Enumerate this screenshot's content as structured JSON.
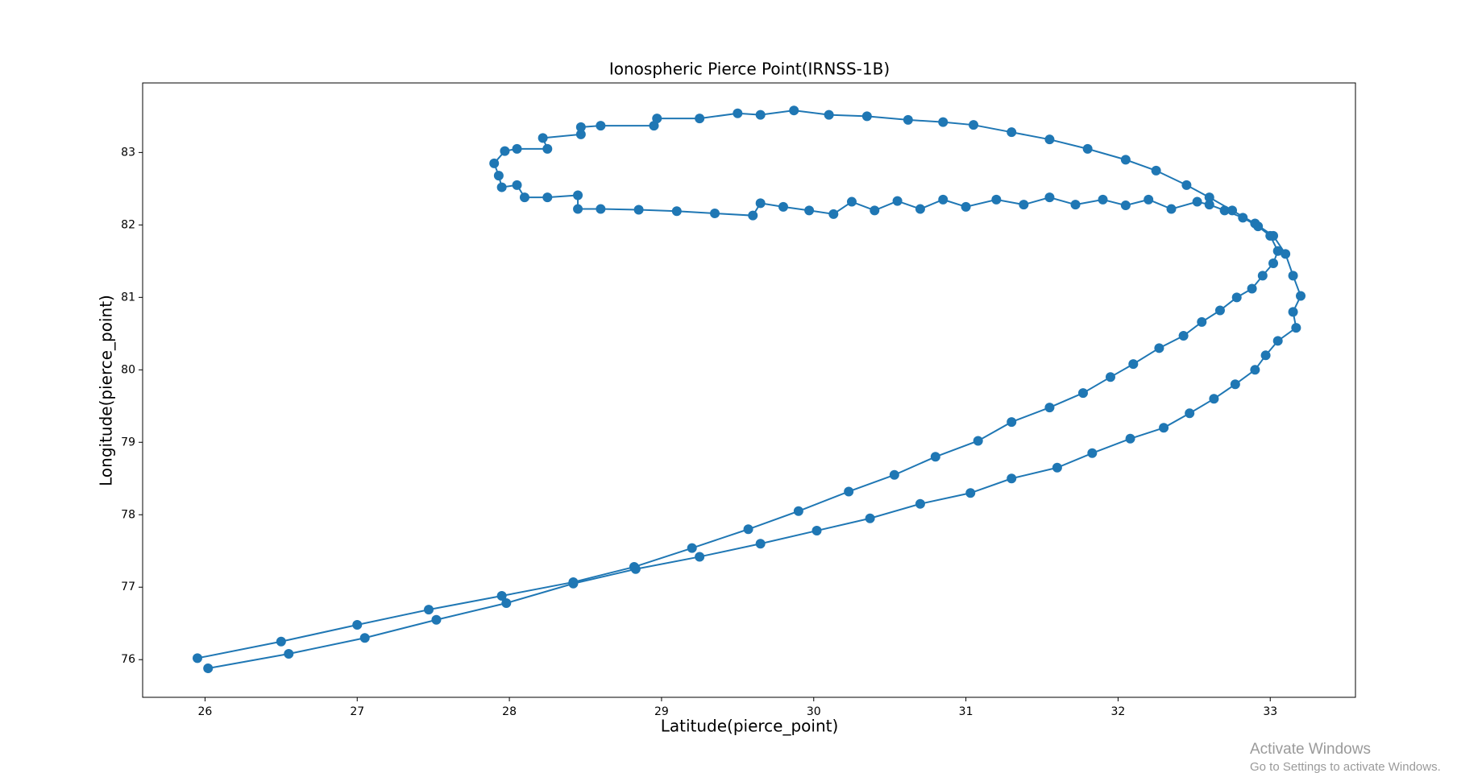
{
  "chart_data": {
    "type": "line",
    "title": "Ionospheric Pierce Point(IRNSS-1B)",
    "x_label": "Latitude(pierce_point)",
    "y_label": "Longitude(pierce_point)",
    "xlim": [
      25.59,
      33.56
    ],
    "ylim": [
      75.48,
      83.96
    ],
    "xticks": [
      26,
      27,
      28,
      29,
      30,
      31,
      32,
      33
    ],
    "yticks": [
      76,
      77,
      78,
      79,
      80,
      81,
      82,
      83
    ],
    "grid": false,
    "marker": "circle",
    "series": [
      {
        "name": "IRNSS-1B",
        "color": "#1f77b4",
        "x": [
          25.95,
          26.5,
          27.0,
          27.47,
          27.95,
          28.42,
          28.82,
          29.2,
          29.57,
          29.9,
          30.23,
          30.53,
          30.8,
          31.08,
          31.3,
          31.55,
          31.77,
          31.95,
          32.1,
          32.27,
          32.43,
          32.55,
          32.67,
          32.78,
          32.88,
          32.95,
          33.02,
          33.05,
          33.0,
          32.92,
          32.82,
          32.7,
          32.6,
          32.52,
          32.35,
          32.2,
          32.05,
          31.9,
          31.72,
          31.55,
          31.38,
          31.2,
          31.0,
          30.85,
          30.7,
          30.55,
          30.4,
          30.25,
          30.13,
          29.97,
          29.8,
          29.65,
          29.6,
          29.35,
          29.1,
          28.85,
          28.6,
          28.45,
          28.45,
          28.25,
          28.1,
          28.05,
          27.95,
          27.93,
          27.9,
          27.97,
          28.05,
          28.25,
          28.22,
          28.47,
          28.47,
          28.6,
          28.95,
          28.97,
          29.25,
          29.5,
          29.65,
          29.87,
          30.1,
          30.35,
          30.62,
          30.85,
          31.05,
          31.3,
          31.55,
          31.8,
          32.05,
          32.25,
          32.45,
          32.6,
          32.75,
          32.9,
          33.02,
          33.1,
          33.15,
          33.2,
          33.15,
          33.17,
          33.05,
          32.97,
          32.9,
          32.77,
          32.63,
          32.47,
          32.3,
          32.08,
          31.83,
          31.6,
          31.3,
          31.03,
          30.7,
          30.37,
          30.02,
          29.65,
          29.25,
          28.83,
          28.42,
          27.98,
          27.52,
          27.05,
          26.55,
          26.02
        ],
        "values": [
          76.02,
          76.25,
          76.48,
          76.69,
          76.88,
          77.07,
          77.28,
          77.54,
          77.8,
          78.05,
          78.32,
          78.55,
          78.8,
          79.02,
          79.28,
          79.48,
          79.68,
          79.9,
          80.08,
          80.3,
          80.47,
          80.66,
          80.82,
          81.0,
          81.12,
          81.3,
          81.47,
          81.64,
          81.85,
          81.98,
          82.1,
          82.2,
          82.28,
          82.32,
          82.22,
          82.35,
          82.27,
          82.35,
          82.28,
          82.38,
          82.28,
          82.35,
          82.25,
          82.35,
          82.22,
          82.33,
          82.2,
          82.32,
          82.15,
          82.2,
          82.25,
          82.3,
          82.13,
          82.16,
          82.19,
          82.21,
          82.22,
          82.22,
          82.41,
          82.38,
          82.38,
          82.55,
          82.52,
          82.68,
          82.85,
          83.02,
          83.05,
          83.05,
          83.2,
          83.25,
          83.35,
          83.37,
          83.37,
          83.47,
          83.47,
          83.54,
          83.52,
          83.58,
          83.52,
          83.5,
          83.45,
          83.42,
          83.38,
          83.28,
          83.18,
          83.05,
          82.9,
          82.75,
          82.55,
          82.38,
          82.2,
          82.02,
          81.85,
          81.6,
          81.3,
          81.02,
          80.8,
          80.58,
          80.4,
          80.2,
          80.0,
          79.8,
          79.6,
          79.4,
          79.2,
          79.05,
          78.85,
          78.65,
          78.5,
          78.3,
          78.15,
          77.95,
          77.78,
          77.6,
          77.42,
          77.25,
          77.05,
          76.78,
          76.55,
          76.3,
          76.08,
          75.88
        ]
      }
    ]
  },
  "watermark": {
    "title": "Activate Windows",
    "subtitle": "Go to Settings to activate Windows."
  }
}
